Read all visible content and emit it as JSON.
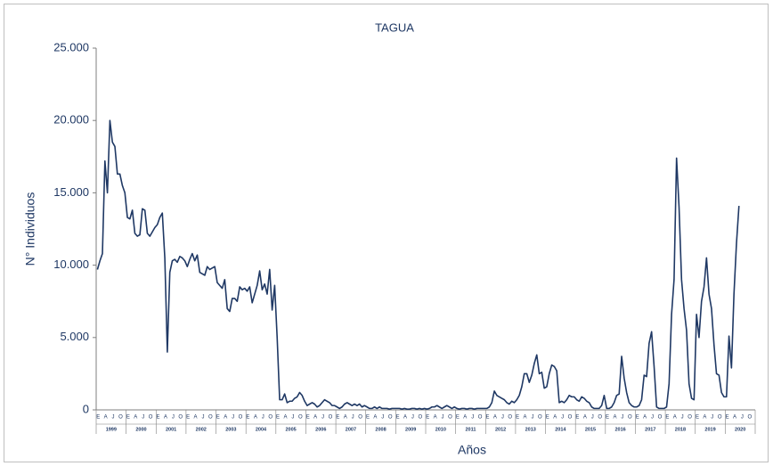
{
  "chart_data": {
    "type": "line",
    "title": "TAGUA",
    "y_label": "N° Individuos",
    "x_label": "Años",
    "year_labels": [
      "1999",
      "2000",
      "2001",
      "2002",
      "2003",
      "2004",
      "2005",
      "2006",
      "2007",
      "2008",
      "2009",
      "2010",
      "2011",
      "2012",
      "2013",
      "2014",
      "2015",
      "2016",
      "2017",
      "2018",
      "2019",
      "2020"
    ],
    "month_labels": [
      "E",
      "A",
      "J",
      "O"
    ],
    "ylim": [
      0,
      25000
    ],
    "yticks": [
      0,
      {
        "value": 5000,
        "label": "5.000"
      },
      {
        "value": 10000,
        "label": "10.000"
      },
      {
        "value": 15000,
        "label": "15.000"
      },
      {
        "value": 20000,
        "label": "20.000"
      },
      {
        "value": 25000,
        "label": "25.000"
      }
    ],
    "grid": false,
    "series": [
      {
        "name": "TAGUA",
        "color": "#1f3864",
        "values": [
          9700,
          10300,
          10800,
          17200,
          15000,
          20000,
          18500,
          18200,
          16300,
          16300,
          15500,
          15000,
          13300,
          13200,
          13800,
          12200,
          12000,
          12100,
          13900,
          13800,
          12200,
          12000,
          12300,
          12600,
          12800,
          13300,
          13600,
          10500,
          4000,
          9500,
          10300,
          10400,
          10200,
          10600,
          10500,
          10300,
          9900,
          10400,
          10800,
          10300,
          10700,
          9500,
          9400,
          9300,
          9900,
          9700,
          9800,
          9900,
          8800,
          8600,
          8400,
          9000,
          7000,
          6800,
          7700,
          7700,
          7500,
          8500,
          8300,
          8400,
          8200,
          8500,
          7400,
          8000,
          8600,
          9600,
          8300,
          8700,
          8000,
          9700,
          6900,
          8600,
          5000,
          700,
          700,
          1100,
          500,
          600,
          600,
          800,
          900,
          1200,
          1000,
          600,
          300,
          400,
          500,
          400,
          200,
          300,
          500,
          700,
          600,
          500,
          300,
          300,
          200,
          100,
          200,
          400,
          500,
          400,
          300,
          400,
          300,
          400,
          200,
          300,
          200,
          100,
          100,
          200,
          100,
          200,
          100,
          100,
          100,
          50,
          100,
          100,
          100,
          100,
          50,
          100,
          50,
          50,
          100,
          100,
          50,
          100,
          50,
          100,
          50,
          100,
          200,
          200,
          300,
          200,
          100,
          200,
          300,
          200,
          100,
          200,
          100,
          50,
          100,
          100,
          50,
          100,
          100,
          50,
          100,
          100,
          100,
          100,
          100,
          200,
          500,
          1300,
          1000,
          900,
          800,
          700,
          500,
          400,
          600,
          500,
          700,
          1000,
          1600,
          2500,
          2500,
          1900,
          2400,
          3200,
          3800,
          2500,
          2600,
          1500,
          1600,
          2500,
          3100,
          3000,
          2700,
          500,
          600,
          500,
          700,
          1000,
          900,
          900,
          700,
          600,
          900,
          800,
          600,
          500,
          200,
          100,
          100,
          100,
          300,
          1000,
          100,
          100,
          200,
          500,
          1000,
          1100,
          3700,
          2200,
          1200,
          500,
          300,
          200,
          200,
          300,
          700,
          2400,
          2300,
          4600,
          5400,
          3000,
          200,
          100,
          100,
          100,
          200,
          1800,
          6600,
          9000,
          17400,
          14000,
          9000,
          7000,
          5500,
          1800,
          800,
          700,
          6600,
          5000,
          7500,
          8500,
          10500,
          8000,
          7000,
          4500,
          2500,
          2400,
          1200,
          900,
          900,
          5100,
          2900,
          8000,
          11500,
          14100,
          null,
          null,
          null,
          null,
          null,
          null
        ]
      }
    ]
  }
}
